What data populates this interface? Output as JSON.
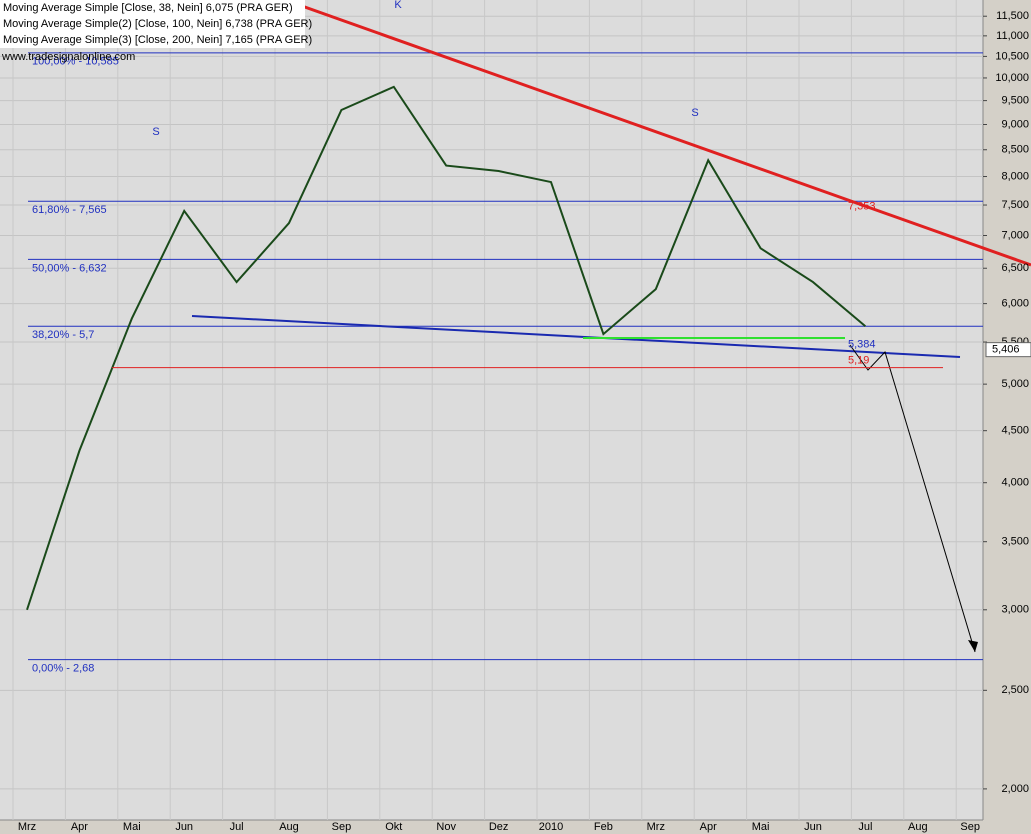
{
  "chart_data": {
    "type": "line",
    "legend": [
      "Moving Average Simple [Close, 38, Nein] 6,075 (PRA GER)",
      "Moving Average Simple(2) [Close, 100, Nein] 6,738 (PRA GER)",
      "Moving Average Simple(3) [Close, 200, Nein] 7,165 (PRA GER)"
    ],
    "watermark": "www.tradesignalonline.com",
    "categories": [
      "Mrz",
      "Apr",
      "Mai",
      "Jun",
      "Jul",
      "Aug",
      "Sep",
      "Okt",
      "Nov",
      "Dez",
      "2010",
      "Feb",
      "Mrz",
      "Apr",
      "Mai",
      "Jun",
      "Jul",
      "Aug",
      "Sep"
    ],
    "series": [
      {
        "name": "Close",
        "color": "#1a4a1a",
        "values": [
          3.0,
          4.3,
          5.8,
          7.4,
          6.3,
          7.2,
          9.3,
          9.8,
          8.2,
          8.1,
          7.9,
          5.6,
          6.2,
          8.3,
          6.8,
          6.3,
          5.7,
          null,
          null
        ]
      }
    ],
    "log_scale": true,
    "grid": true,
    "ylim": [
      1.864,
      11.93
    ],
    "yticks": [
      {
        "value": 2,
        "label": "2,000"
      },
      {
        "value": 2.5,
        "label": "2,500"
      },
      {
        "value": 3,
        "label": "3,000"
      },
      {
        "value": 3.5,
        "label": "3,500"
      },
      {
        "value": 4,
        "label": "4,000"
      },
      {
        "value": 4.5,
        "label": "4,500"
      },
      {
        "value": 5,
        "label": "5,000"
      },
      {
        "value": 5.5,
        "label": "5,500"
      },
      {
        "value": 6,
        "label": "6,000"
      },
      {
        "value": 6.5,
        "label": "6,500"
      },
      {
        "value": 7,
        "label": "7,000"
      },
      {
        "value": 7.5,
        "label": "7,500"
      },
      {
        "value": 8,
        "label": "8,000"
      },
      {
        "value": 8.5,
        "label": "8,500"
      },
      {
        "value": 9,
        "label": "9,000"
      },
      {
        "value": 9.5,
        "label": "9,500"
      },
      {
        "value": 10,
        "label": "10,000"
      },
      {
        "value": 10.5,
        "label": "10,500"
      },
      {
        "value": 11,
        "label": "11,000"
      },
      {
        "value": 11.5,
        "label": "11,500"
      }
    ],
    "levels": [
      {
        "value": 10.585,
        "label": "100,00% - 10,585"
      },
      {
        "value": 7.565,
        "label": "61,80% - 7,565"
      },
      {
        "value": 6.632,
        "label": "50,00% - 6,632"
      },
      {
        "value": 5.7,
        "label": "38,20% - 5,7"
      },
      {
        "value": 2.68,
        "label": "0,00% - 2,68"
      }
    ],
    "price_labels": [
      {
        "value": 7.353,
        "label": "7,353"
      },
      {
        "value": 5.384,
        "label": "5,384"
      },
      {
        "value": 5.19,
        "label": "5,19"
      },
      {
        "value": 5.406,
        "label": "5,406"
      }
    ],
    "annotations": [
      "S",
      "K",
      "S"
    ]
  }
}
